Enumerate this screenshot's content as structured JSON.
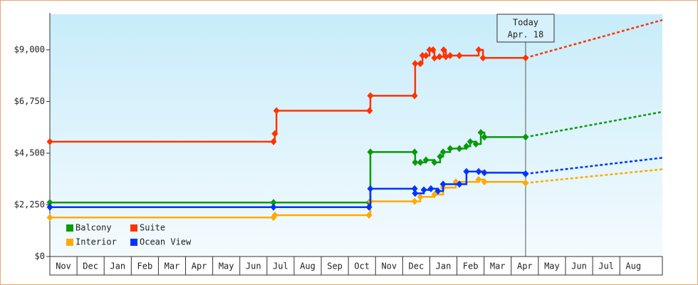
{
  "chart_data": {
    "type": "step-line",
    "categories": [
      "Nov",
      "Dec",
      "Jan",
      "Feb",
      "Mar",
      "Apr",
      "May",
      "Jun",
      "Jul",
      "Aug",
      "Sep",
      "Oct",
      "Nov",
      "Dec",
      "Jan",
      "Feb",
      "Mar",
      "Apr",
      "May",
      "Jun",
      "Jul",
      "Aug"
    ],
    "xlim": [
      0,
      22.57
    ],
    "ylim": [
      0,
      10550
    ],
    "yticks": [
      {
        "value": 0,
        "label": "$0"
      },
      {
        "value": 2250,
        "label": "$2,250"
      },
      {
        "value": 4500,
        "label": "$4,500"
      },
      {
        "value": 6750,
        "label": "$6,750"
      },
      {
        "value": 9000,
        "label": "$9,000"
      }
    ],
    "today": {
      "x": 17.53,
      "line1": "Today",
      "line2": "Apr. 18"
    },
    "forecast_x": [
      17.53,
      22.57
    ],
    "legend": "lower left",
    "series": [
      {
        "name": "Balcony",
        "color": "#0a9a0a",
        "x": [
          0,
          8.24,
          11.76,
          11.81,
          13.44,
          13.46,
          13.65,
          13.86,
          14.17,
          14.38,
          14.49,
          14.75,
          15.09,
          15.35,
          15.49,
          15.7,
          15.88,
          16.01,
          17.53
        ],
        "values": [
          2350,
          2350,
          2350,
          4550,
          4550,
          4100,
          4100,
          4200,
          4100,
          4350,
          4550,
          4700,
          4700,
          4800,
          5000,
          4900,
          5400,
          5200,
          5200
        ],
        "forecast_values": [
          5200,
          6300
        ]
      },
      {
        "name": "Suite",
        "color": "#ff3300",
        "x": [
          0,
          8.24,
          8.29,
          8.35,
          11.78,
          11.81,
          13.44,
          13.46,
          13.65,
          13.73,
          13.86,
          13.99,
          14.12,
          14.17,
          14.36,
          14.51,
          14.59,
          14.75,
          15.09,
          15.8,
          15.96,
          17.53
        ],
        "values": [
          5000,
          5000,
          5350,
          6350,
          6350,
          7000,
          7000,
          8400,
          8400,
          8750,
          8750,
          9000,
          9000,
          8650,
          8700,
          9000,
          8700,
          8750,
          8750,
          9000,
          8650,
          8650
        ],
        "forecast_values": [
          8650,
          10300
        ]
      },
      {
        "name": "Interior",
        "color": "#ffaa00",
        "x": [
          0,
          8.24,
          8.29,
          11.76,
          11.81,
          13.44,
          13.65,
          14.17,
          14.49,
          14.96,
          15.8,
          16.01,
          17.53
        ],
        "values": [
          1700,
          1700,
          1800,
          1800,
          2400,
          2400,
          2600,
          2700,
          3000,
          3250,
          3350,
          3250,
          3200
        ],
        "forecast_values": [
          3200,
          3800
        ]
      },
      {
        "name": "Ocean View",
        "color": "#0033ff",
        "x": [
          0,
          8.24,
          11.76,
          11.81,
          13.44,
          13.46,
          13.78,
          14.04,
          14.3,
          14.49,
          15.09,
          15.35,
          15.8,
          16.01,
          17.53
        ],
        "values": [
          2150,
          2150,
          2150,
          2950,
          2950,
          2750,
          2900,
          2950,
          2850,
          3150,
          3150,
          3700,
          3700,
          3650,
          3600
        ],
        "forecast_values": [
          3600,
          4300
        ]
      }
    ]
  }
}
